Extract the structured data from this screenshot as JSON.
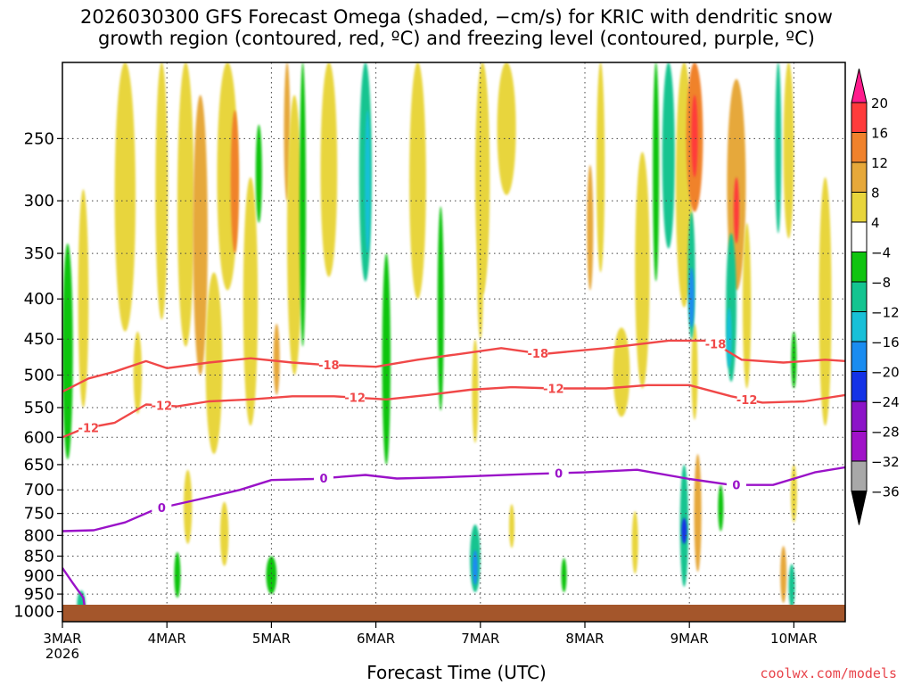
{
  "title_line1": "2026030300 GFS Forecast Omega (shaded, −cm/s) for KRIC with dendritic snow",
  "title_line2": "growth region (contoured, red, ºC) and freezing level (contoured, purple, ºC)",
  "xlabel": "Forecast Time (UTC)",
  "credit": "coolwx.com/models",
  "chart_data": {
    "type": "heatmap",
    "x_ticks": [
      "3MAR",
      "4MAR",
      "5MAR",
      "6MAR",
      "7MAR",
      "8MAR",
      "9MAR",
      "10MAR"
    ],
    "x_year": "2026",
    "x_range_days": [
      0,
      7.5
    ],
    "y_ticks": [
      250,
      300,
      350,
      400,
      450,
      500,
      550,
      600,
      650,
      700,
      750,
      800,
      850,
      900,
      950,
      1000
    ],
    "y_range_hPa": [
      200,
      1030
    ],
    "y_scale": "log",
    "grid": true,
    "colorbar": {
      "labels": [
        "20",
        "16",
        "12",
        "8",
        "4",
        "−4",
        "−8",
        "−12",
        "−16",
        "−20",
        "−24",
        "−28",
        "−32",
        "−36"
      ],
      "colors": [
        "#ff1c8d",
        "#ff3b3b",
        "#f0822c",
        "#e6a83a",
        "#e8d53c",
        "#ffffff",
        "#10c410",
        "#14c490",
        "#18c0d8",
        "#1a8cf0",
        "#1432e6",
        "#8c14c8",
        "#a012c8",
        "#a8a8a8",
        "#000000"
      ]
    },
    "omega_blobs": [
      {
        "day": 0.05,
        "p": 490,
        "val": -6,
        "w": 0.1,
        "h": 300
      },
      {
        "day": 0.18,
        "p": 980,
        "val": -8,
        "w": 0.08,
        "h": 80
      },
      {
        "day": 0.2,
        "p": 420,
        "val": 6,
        "w": 0.1,
        "h": 260
      },
      {
        "day": 0.6,
        "p": 300,
        "val": 6,
        "w": 0.2,
        "h": 280
      },
      {
        "day": 0.72,
        "p": 500,
        "val": 5,
        "w": 0.08,
        "h": 120
      },
      {
        "day": 0.95,
        "p": 300,
        "val": 5,
        "w": 0.12,
        "h": 250
      },
      {
        "day": 1.1,
        "p": 900,
        "val": -6,
        "w": 0.06,
        "h": 120
      },
      {
        "day": 1.18,
        "p": 330,
        "val": 6,
        "w": 0.16,
        "h": 260
      },
      {
        "day": 1.2,
        "p": 740,
        "val": 5,
        "w": 0.08,
        "h": 160
      },
      {
        "day": 1.32,
        "p": 360,
        "val": 11,
        "w": 0.14,
        "h": 280
      },
      {
        "day": 1.45,
        "p": 500,
        "val": 6,
        "w": 0.16,
        "h": 260
      },
      {
        "day": 1.55,
        "p": 800,
        "val": 5,
        "w": 0.08,
        "h": 150
      },
      {
        "day": 1.58,
        "p": 290,
        "val": 7,
        "w": 0.2,
        "h": 200
      },
      {
        "day": 1.65,
        "p": 290,
        "val": 12,
        "w": 0.08,
        "h": 120
      },
      {
        "day": 1.8,
        "p": 430,
        "val": 6,
        "w": 0.14,
        "h": 300
      },
      {
        "day": 1.88,
        "p": 280,
        "val": -6,
        "w": 0.06,
        "h": 80
      },
      {
        "day": 2.0,
        "p": 900,
        "val": -6,
        "w": 0.1,
        "h": 100
      },
      {
        "day": 2.05,
        "p": 480,
        "val": 9,
        "w": 0.06,
        "h": 100
      },
      {
        "day": 2.15,
        "p": 250,
        "val": 9,
        "w": 0.06,
        "h": 100
      },
      {
        "day": 2.22,
        "p": 360,
        "val": 6,
        "w": 0.14,
        "h": 280
      },
      {
        "day": 2.3,
        "p": 320,
        "val": -6,
        "w": 0.06,
        "h": 280
      },
      {
        "day": 2.55,
        "p": 250,
        "val": 5,
        "w": 0.16,
        "h": 250
      },
      {
        "day": 2.9,
        "p": 280,
        "val": -9,
        "w": 0.12,
        "h": 200
      },
      {
        "day": 2.92,
        "p": 290,
        "val": -14,
        "w": 0.05,
        "h": 120
      },
      {
        "day": 3.1,
        "p": 500,
        "val": -7,
        "w": 0.08,
        "h": 300
      },
      {
        "day": 3.4,
        "p": 280,
        "val": 5,
        "w": 0.16,
        "h": 240
      },
      {
        "day": 3.62,
        "p": 430,
        "val": -5,
        "w": 0.06,
        "h": 250
      },
      {
        "day": 3.95,
        "p": 860,
        "val": -10,
        "w": 0.1,
        "h": 170
      },
      {
        "day": 3.95,
        "p": 880,
        "val": -16,
        "w": 0.05,
        "h": 90
      },
      {
        "day": 3.95,
        "p": 530,
        "val": 5,
        "w": 0.06,
        "h": 160
      },
      {
        "day": 4.0,
        "p": 380,
        "val": 5,
        "w": 0.06,
        "h": 140
      },
      {
        "day": 4.02,
        "p": 270,
        "val": 6,
        "w": 0.14,
        "h": 250
      },
      {
        "day": 4.25,
        "p": 220,
        "val": 5,
        "w": 0.18,
        "h": 150
      },
      {
        "day": 4.3,
        "p": 780,
        "val": 5,
        "w": 0.05,
        "h": 100
      },
      {
        "day": 4.8,
        "p": 900,
        "val": -7,
        "w": 0.05,
        "h": 90
      },
      {
        "day": 5.05,
        "p": 330,
        "val": 10,
        "w": 0.06,
        "h": 120
      },
      {
        "day": 5.15,
        "p": 280,
        "val": 6,
        "w": 0.08,
        "h": 180
      },
      {
        "day": 5.35,
        "p": 500,
        "val": 5,
        "w": 0.16,
        "h": 130
      },
      {
        "day": 5.48,
        "p": 820,
        "val": 6,
        "w": 0.06,
        "h": 150
      },
      {
        "day": 5.55,
        "p": 390,
        "val": 5,
        "w": 0.14,
        "h": 260
      },
      {
        "day": 5.68,
        "p": 280,
        "val": -7,
        "w": 0.06,
        "h": 200
      },
      {
        "day": 5.8,
        "p": 270,
        "val": -8,
        "w": 0.12,
        "h": 150
      },
      {
        "day": 5.95,
        "p": 300,
        "val": 6,
        "w": 0.16,
        "h": 220
      },
      {
        "day": 6.05,
        "p": 250,
        "val": 12,
        "w": 0.16,
        "h": 120
      },
      {
        "day": 6.05,
        "p": 250,
        "val": 18,
        "w": 0.06,
        "h": 60
      },
      {
        "day": 6.05,
        "p": 500,
        "val": 5,
        "w": 0.06,
        "h": 140
      },
      {
        "day": 6.02,
        "p": 380,
        "val": -11,
        "w": 0.07,
        "h": 140
      },
      {
        "day": 6.02,
        "p": 400,
        "val": -16,
        "w": 0.04,
        "h": 70
      },
      {
        "day": 5.95,
        "p": 790,
        "val": -11,
        "w": 0.08,
        "h": 280
      },
      {
        "day": 5.95,
        "p": 790,
        "val": -20,
        "w": 0.03,
        "h": 60
      },
      {
        "day": 6.08,
        "p": 760,
        "val": 10,
        "w": 0.07,
        "h": 260
      },
      {
        "day": 6.3,
        "p": 740,
        "val": -7,
        "w": 0.04,
        "h": 100
      },
      {
        "day": 6.45,
        "p": 300,
        "val": 11,
        "w": 0.18,
        "h": 180
      },
      {
        "day": 6.45,
        "p": 310,
        "val": 18,
        "w": 0.05,
        "h": 60
      },
      {
        "day": 6.4,
        "p": 420,
        "val": -9,
        "w": 0.1,
        "h": 180
      },
      {
        "day": 6.38,
        "p": 450,
        "val": -14,
        "w": 0.04,
        "h": 80
      },
      {
        "day": 6.55,
        "p": 420,
        "val": 5,
        "w": 0.08,
        "h": 200
      },
      {
        "day": 6.85,
        "p": 250,
        "val": -10,
        "w": 0.06,
        "h": 160
      },
      {
        "day": 6.95,
        "p": 260,
        "val": 5,
        "w": 0.1,
        "h": 150
      },
      {
        "day": 7.0,
        "p": 710,
        "val": 7,
        "w": 0.06,
        "h": 120
      },
      {
        "day": 6.9,
        "p": 900,
        "val": 10,
        "w": 0.06,
        "h": 150
      },
      {
        "day": 6.98,
        "p": 930,
        "val": -11,
        "w": 0.06,
        "h": 120
      },
      {
        "day": 7.0,
        "p": 480,
        "val": -7,
        "w": 0.05,
        "h": 80
      },
      {
        "day": 7.3,
        "p": 430,
        "val": 5,
        "w": 0.12,
        "h": 300
      }
    ],
    "contours": [
      {
        "label": "-18",
        "color": "#f04848",
        "label_days": [
          2.55,
          4.55,
          6.25
        ],
        "points": [
          [
            0,
            525
          ],
          [
            0.25,
            505
          ],
          [
            0.5,
            495
          ],
          [
            0.8,
            480
          ],
          [
            1.0,
            490
          ],
          [
            1.4,
            482
          ],
          [
            1.8,
            476
          ],
          [
            2.2,
            482
          ],
          [
            2.5,
            485
          ],
          [
            3.0,
            488
          ],
          [
            3.4,
            478
          ],
          [
            3.8,
            470
          ],
          [
            4.2,
            462
          ],
          [
            4.6,
            470
          ],
          [
            5.2,
            462
          ],
          [
            5.8,
            452
          ],
          [
            6.2,
            452
          ],
          [
            6.5,
            478
          ],
          [
            6.9,
            482
          ],
          [
            7.3,
            478
          ],
          [
            7.5,
            480
          ]
        ]
      },
      {
        "label": "-12",
        "color": "#f04848",
        "label_days": [
          0.25,
          0.95,
          2.8,
          4.7,
          6.55
        ],
        "points": [
          [
            0,
            600
          ],
          [
            0.2,
            585
          ],
          [
            0.5,
            575
          ],
          [
            0.8,
            545
          ],
          [
            1.1,
            548
          ],
          [
            1.4,
            540
          ],
          [
            1.8,
            537
          ],
          [
            2.2,
            532
          ],
          [
            2.6,
            532
          ],
          [
            3.1,
            537
          ],
          [
            3.5,
            530
          ],
          [
            3.9,
            522
          ],
          [
            4.3,
            518
          ],
          [
            4.7,
            520
          ],
          [
            5.2,
            520
          ],
          [
            5.6,
            515
          ],
          [
            6.0,
            515
          ],
          [
            6.4,
            532
          ],
          [
            6.7,
            542
          ],
          [
            7.1,
            540
          ],
          [
            7.5,
            530
          ]
        ]
      },
      {
        "label": "0",
        "color": "#9a12c8",
        "label_days": [
          0.95,
          2.5,
          4.75,
          6.45
        ],
        "points": [
          [
            0,
            790
          ],
          [
            0.3,
            788
          ],
          [
            0.6,
            770
          ],
          [
            0.9,
            740
          ],
          [
            1.3,
            720
          ],
          [
            1.7,
            700
          ],
          [
            2.0,
            680
          ],
          [
            2.4,
            678
          ],
          [
            2.9,
            670
          ],
          [
            3.2,
            677
          ],
          [
            3.6,
            675
          ],
          [
            4.0,
            672
          ],
          [
            4.5,
            668
          ],
          [
            5.0,
            665
          ],
          [
            5.5,
            660
          ],
          [
            6.0,
            678
          ],
          [
            6.4,
            690
          ],
          [
            6.8,
            690
          ],
          [
            7.2,
            665
          ],
          [
            7.5,
            655
          ]
        ]
      },
      {
        "label": "",
        "color": "#9a12c8",
        "label_days": [],
        "points": [
          [
            0,
            880
          ],
          [
            0.1,
            920
          ],
          [
            0.2,
            960
          ],
          [
            0.22,
            1000
          ],
          [
            0.05,
            1005
          ],
          [
            0,
            1005
          ]
        ]
      }
    ]
  }
}
